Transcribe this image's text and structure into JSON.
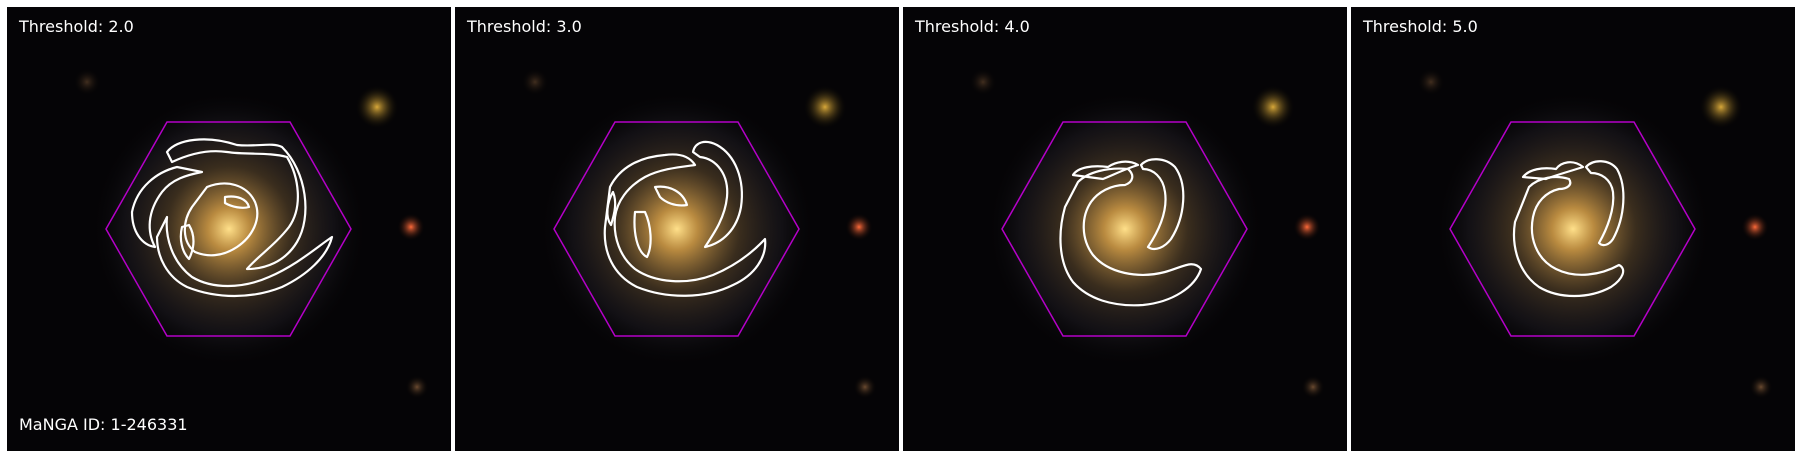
{
  "figure": {
    "panels": [
      {
        "threshold_label": "Threshold: 2.0"
      },
      {
        "threshold_label": "Threshold: 3.0"
      },
      {
        "threshold_label": "Threshold: 4.0"
      },
      {
        "threshold_label": "Threshold: 5.0"
      }
    ],
    "manga_id_label": "MaNGA ID: 1-246331"
  },
  "colors": {
    "hexagon": "#b400c8",
    "contour": "#ffffff",
    "background": "#000000"
  }
}
